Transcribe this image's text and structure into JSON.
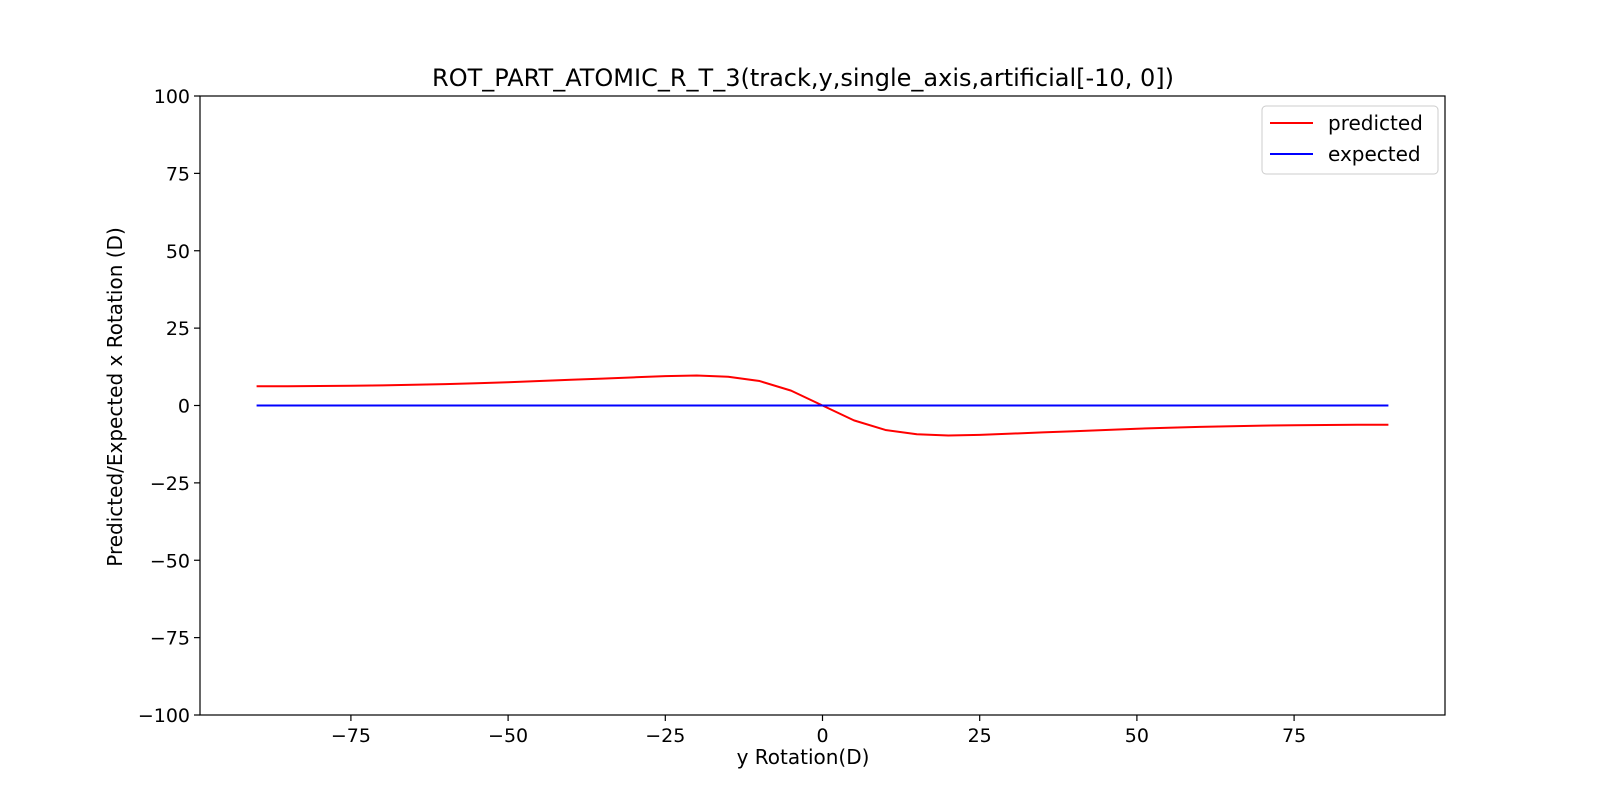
{
  "chart_data": {
    "type": "line",
    "title": "ROT_PART_ATOMIC_R_T_3(track,y,single_axis,artificial[-10, 0])",
    "xlabel": "y Rotation(D)",
    "ylabel": "Predicted/Expected x Rotation (D)",
    "xlim": [
      -99,
      99
    ],
    "ylim": [
      -100,
      100
    ],
    "xticks": [
      -75,
      -50,
      -25,
      0,
      25,
      50,
      75
    ],
    "yticks": [
      -100,
      -75,
      -50,
      -25,
      0,
      25,
      50,
      75,
      100
    ],
    "x": [
      -90,
      -85,
      -80,
      -75,
      -70,
      -65,
      -60,
      -55,
      -50,
      -45,
      -40,
      -35,
      -30,
      -25,
      -20,
      -15,
      -10,
      -5,
      0,
      5,
      10,
      15,
      20,
      25,
      30,
      35,
      40,
      45,
      50,
      55,
      60,
      65,
      70,
      75,
      80,
      85,
      90
    ],
    "series": [
      {
        "name": "predicted",
        "color": "#ff0000",
        "values": [
          6.2,
          6.2,
          6.3,
          6.4,
          6.5,
          6.7,
          6.9,
          7.2,
          7.5,
          7.9,
          8.3,
          8.7,
          9.1,
          9.5,
          9.7,
          9.3,
          7.9,
          4.8,
          0.0,
          -4.8,
          -7.9,
          -9.3,
          -9.7,
          -9.5,
          -9.1,
          -8.7,
          -8.3,
          -7.9,
          -7.5,
          -7.2,
          -6.9,
          -6.7,
          -6.5,
          -6.4,
          -6.3,
          -6.2,
          -6.2
        ]
      },
      {
        "name": "expected",
        "color": "#0000ff",
        "values": [
          0,
          0,
          0,
          0,
          0,
          0,
          0,
          0,
          0,
          0,
          0,
          0,
          0,
          0,
          0,
          0,
          0,
          0,
          0,
          0,
          0,
          0,
          0,
          0,
          0,
          0,
          0,
          0,
          0,
          0,
          0,
          0,
          0,
          0,
          0,
          0,
          0
        ]
      }
    ],
    "legend_position": "top-right",
    "grid": false
  }
}
